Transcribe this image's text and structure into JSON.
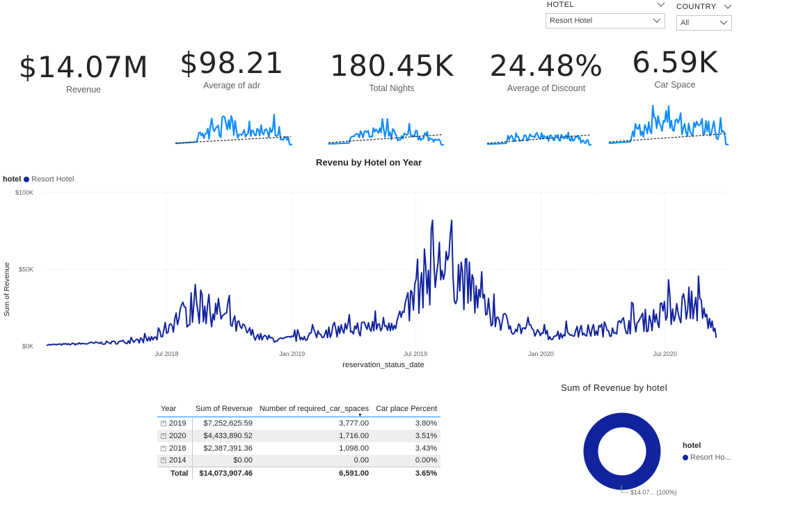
{
  "slicers": {
    "hotel": {
      "label": "HOTEL",
      "value": "Resort Hotel"
    },
    "country": {
      "label": "COUNTRY",
      "value": "All"
    }
  },
  "kpis": [
    {
      "value": "$14.07M",
      "label": "Revenue"
    },
    {
      "value": "$98.21",
      "label": "Average of adr"
    },
    {
      "value": "180.45K",
      "label": "Total Nights"
    },
    {
      "value": "24.48%",
      "label": "Average of Discount"
    },
    {
      "value": "6.59K",
      "label": "Car Space"
    }
  ],
  "colors": {
    "accent": "#12239e",
    "spark": "#118dff",
    "grid": "#c8c6c4"
  },
  "line_chart": {
    "title": "Revenu by Hotel on Year",
    "legend_title": "hotel",
    "legend_item": "Resort Hotel",
    "xlabel": "reservation_status_date",
    "ylabel": "Sum of Revenue",
    "yticks": [
      "$100K",
      "$50K",
      "$0K"
    ],
    "xticks": [
      "Jul 2018",
      "Jan 2019",
      "Jul 2019",
      "Jan 2020",
      "Jul 2020"
    ]
  },
  "table": {
    "headers": [
      "Year",
      "Sum of Revenue",
      "Number of required_car_spaces",
      "Car place Percent"
    ],
    "rows": [
      {
        "year": "2019",
        "revenue": "$7,252,625.59",
        "cars": "3,777.00",
        "pct": "3.80%"
      },
      {
        "year": "2020",
        "revenue": "$4,433,890.52",
        "cars": "1,716.00",
        "pct": "3.51%"
      },
      {
        "year": "2018",
        "revenue": "$2,387,391.36",
        "cars": "1,098.00",
        "pct": "3.43%"
      },
      {
        "year": "2014",
        "revenue": "$0.00",
        "cars": "0.00",
        "pct": "0.00%"
      }
    ],
    "total": {
      "label": "Total",
      "revenue": "$14,073,907.46",
      "cars": "6,591.00",
      "pct": "3.65%"
    }
  },
  "donut": {
    "title": "Sum of Revenue by hotel",
    "legend_title": "hotel",
    "legend_item": "Resort Ho...",
    "data_label": "$14.07... (100%)"
  },
  "chart_data": [
    {
      "type": "line",
      "title": "Revenu by Hotel on Year",
      "xlabel": "reservation_status_date",
      "ylabel": "Sum of Revenue",
      "ylim": [
        0,
        100000
      ],
      "grid": true,
      "legend_placement": "top-left",
      "series": [
        {
          "name": "Resort Hotel",
          "x": [
            "2018-01",
            "2018-02",
            "2018-03",
            "2018-04",
            "2018-05",
            "2018-06",
            "2018-07",
            "2018-08",
            "2018-09",
            "2018-10",
            "2018-11",
            "2018-12",
            "2019-01",
            "2019-02",
            "2019-03",
            "2019-04",
            "2019-05",
            "2019-06",
            "2019-07",
            "2019-08",
            "2019-09",
            "2019-10",
            "2019-11",
            "2019-12",
            "2020-01",
            "2020-02",
            "2020-03",
            "2020-04",
            "2020-05",
            "2020-06",
            "2020-07",
            "2020-08",
            "2020-09"
          ],
          "values": [
            1000,
            1500,
            2000,
            2500,
            3500,
            5000,
            18000,
            25000,
            22000,
            12000,
            6000,
            4000,
            6000,
            9000,
            11000,
            12000,
            14000,
            20000,
            45000,
            55000,
            40000,
            22000,
            14000,
            10000,
            7000,
            9000,
            10000,
            12000,
            15000,
            18000,
            25000,
            28000,
            8000
          ]
        }
      ]
    },
    {
      "type": "pie",
      "title": "Sum of Revenue by hotel",
      "categories": [
        "Resort Hotel"
      ],
      "values": [
        14073907.46
      ],
      "legend_placement": "right"
    },
    {
      "type": "table",
      "columns": [
        "Year",
        "Sum of Revenue",
        "Number of required_car_spaces",
        "Car place Percent"
      ],
      "rows": [
        [
          "2019",
          7252625.59,
          3777,
          3.8
        ],
        [
          "2020",
          4433890.52,
          1716,
          3.51
        ],
        [
          "2018",
          2387391.36,
          1098,
          3.43
        ],
        [
          "2014",
          0,
          0,
          0
        ],
        [
          "Total",
          14073907.46,
          6591,
          3.65
        ]
      ]
    }
  ]
}
